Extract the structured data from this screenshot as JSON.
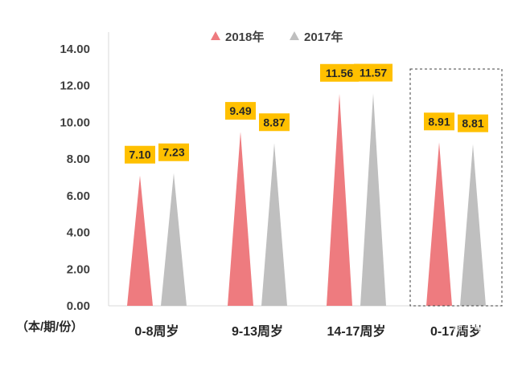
{
  "chart_data": {
    "type": "bar",
    "bar_shape": "triangle",
    "categories": [
      "0-8周岁",
      "9-13周岁",
      "14-17周岁",
      "0-17周岁"
    ],
    "series": [
      {
        "name": "2018年",
        "color": "#EE7B7F",
        "values": [
          7.1,
          9.49,
          11.56,
          8.91
        ]
      },
      {
        "name": "2017年",
        "color": "#BFBFBF",
        "values": [
          7.23,
          8.87,
          11.57,
          8.81
        ]
      }
    ],
    "data_labels": [
      [
        "7.10",
        "9.49",
        "11.56",
        "8.91"
      ],
      [
        "7.23",
        "8.87",
        "11.57",
        "8.81"
      ]
    ],
    "ylabel": "（本/期/份）",
    "ylim": [
      0,
      14
    ],
    "yticks": [
      "0.00",
      "2.00",
      "4.00",
      "6.00",
      "8.00",
      "10.00",
      "12.00",
      "14.00"
    ],
    "grid": false,
    "legend": "top-center",
    "highlight_category": "0-17周岁"
  },
  "watermark": "新华中国"
}
